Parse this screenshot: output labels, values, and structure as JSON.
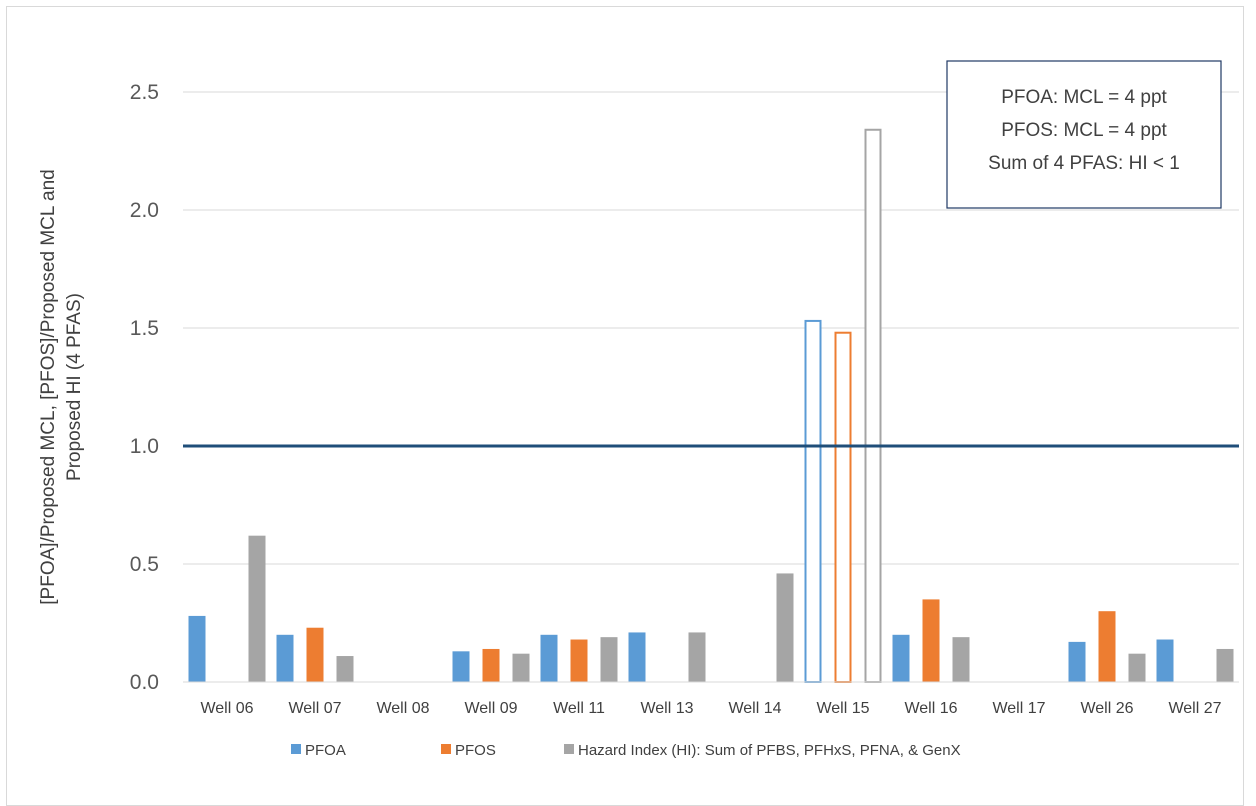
{
  "chart_data": {
    "type": "bar",
    "title": "",
    "xlabel": "",
    "ylabel_lines": [
      "[PFOA]/Proposed MCL,  [PFOS]/Proposed MCL and",
      "Proposed HI (4 PFAS)"
    ],
    "ylim": [
      0,
      2.5
    ],
    "yticks": [
      "0.0",
      "0.5",
      "1.0",
      "1.5",
      "2.0",
      "2.5"
    ],
    "grid": true,
    "reference_line": 1.0,
    "categories": [
      "Well 06",
      "Well 07",
      "Well 08",
      "Well 09",
      "Well 11",
      "Well 13",
      "Well 14",
      "Well 15",
      "Well 16",
      "Well 17",
      "Well 26",
      "Well 27"
    ],
    "hollow_category": "Well 15",
    "series": [
      {
        "name": "PFOA",
        "color": "#5b9bd5",
        "values": [
          0.28,
          0.2,
          0,
          0.13,
          0.2,
          0.21,
          0,
          1.53,
          0.2,
          0,
          0.17,
          0.18
        ]
      },
      {
        "name": "PFOS",
        "color": "#ed7d31",
        "values": [
          0,
          0.23,
          0,
          0.14,
          0.18,
          0,
          0,
          1.48,
          0.35,
          0,
          0.3,
          0
        ]
      },
      {
        "name": "Hazard Index (HI):  Sum of PFBS, PFHxS, PFNA, & GenX",
        "color": "#a5a5a5",
        "values": [
          0.62,
          0.11,
          0,
          0.12,
          0.19,
          0.21,
          0.46,
          2.34,
          0.19,
          0,
          0.12,
          0.14
        ]
      }
    ],
    "legend_position": "bottom",
    "annotation_lines": [
      "PFOA:  MCL = 4 ppt",
      "PFOS:  MCL = 4 ppt",
      "Sum of 4 PFAS:  HI < 1"
    ],
    "annotation_position": "top-right",
    "reference_line_color": "#1f4e79",
    "grid_color": "#d9d9d9"
  }
}
